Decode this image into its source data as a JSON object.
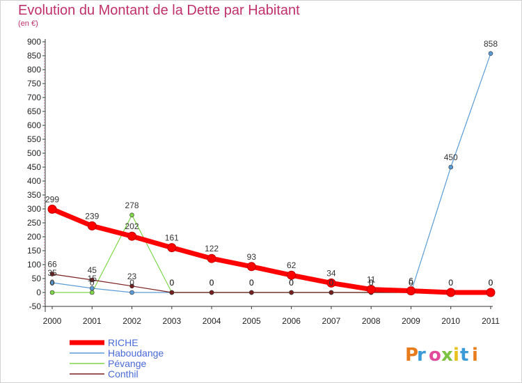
{
  "chart_data": {
    "type": "line",
    "title": "Evolution du Montant de la Dette par Habitant",
    "subtitle": "(en €)",
    "x": [
      "2000",
      "2001",
      "2002",
      "2003",
      "2004",
      "2005",
      "2006",
      "2007",
      "2008",
      "2009",
      "2010",
      "2011"
    ],
    "ylim": [
      -50,
      900
    ],
    "yticks": [
      -50,
      0,
      50,
      100,
      150,
      200,
      250,
      300,
      350,
      400,
      450,
      500,
      550,
      600,
      650,
      700,
      750,
      800,
      850,
      900
    ],
    "grid": false,
    "legend_position": "bottom-left",
    "series": [
      {
        "name": "RICHE",
        "color": "#ff0000",
        "values": [
          299,
          239,
          202,
          161,
          122,
          93,
          62,
          34,
          11,
          6,
          0,
          0
        ],
        "labels": [
          "299",
          "239",
          "202",
          "161",
          "122",
          "93",
          "62",
          "34",
          "11",
          "6",
          "0",
          "0"
        ]
      },
      {
        "name": "Haboudange",
        "color": "#5b9bd5",
        "values": [
          35,
          15,
          0,
          0,
          0,
          0,
          0,
          0,
          0,
          0,
          450,
          858
        ],
        "labels": [
          "35",
          "15",
          "0",
          "0",
          "0",
          "0",
          "0",
          "0",
          "0",
          "0",
          "450",
          "858"
        ]
      },
      {
        "name": "Pévange",
        "color": "#7fd64a",
        "values": [
          0,
          0,
          278,
          0,
          0,
          0,
          0,
          0,
          0,
          0,
          0,
          0
        ],
        "labels": [
          "0",
          "0",
          "278",
          "0",
          "0",
          "0",
          "0",
          "0",
          "0",
          "0",
          "0",
          "0"
        ]
      },
      {
        "name": "Conthil",
        "color": "#7a1f1f",
        "values": [
          66,
          45,
          23,
          0,
          0,
          0,
          0,
          0,
          0,
          0,
          0,
          0
        ],
        "labels": [
          "66",
          "45",
          "23",
          "0",
          "0",
          "0",
          "0",
          "0",
          "0",
          "0",
          "0",
          "0"
        ]
      }
    ]
  },
  "watermark": {
    "text": "Proxiti"
  }
}
